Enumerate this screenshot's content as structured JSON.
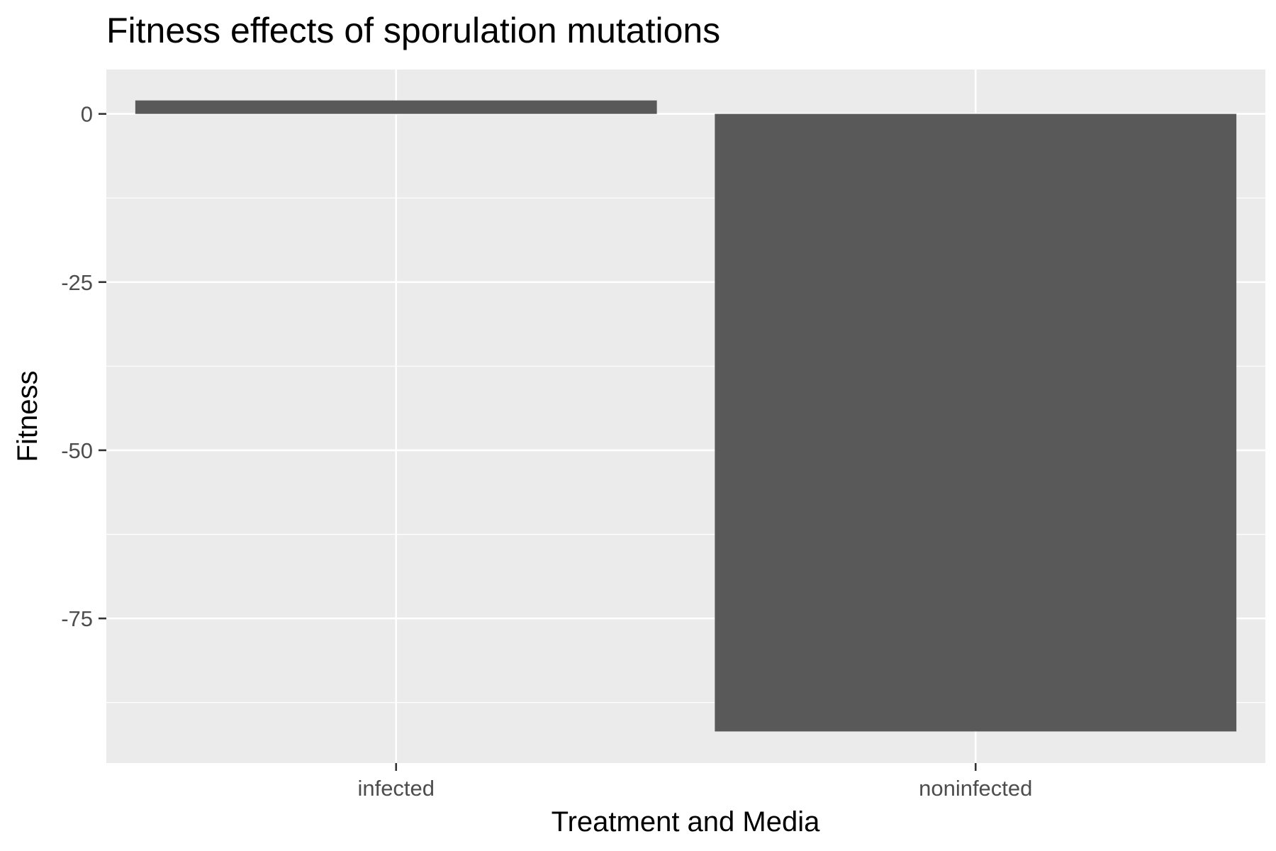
{
  "chart_data": {
    "type": "bar",
    "title": "Fitness effects of sporulation mutations",
    "xlabel": "Treatment and Media",
    "ylabel": "Fitness",
    "categories": [
      "infected",
      "noninfected"
    ],
    "values": [
      2,
      -91.8
    ],
    "ylim": [
      -96.5,
      6.6
    ],
    "yticks": [
      0,
      -25,
      -50,
      -75
    ],
    "ytick_labels": [
      "0",
      "-25",
      "-50",
      "-75"
    ],
    "grid": true,
    "legend": "none",
    "colors": {
      "panel_background": "#ebebeb",
      "grid": "#ffffff",
      "bar": "#595959",
      "tick": "#333333",
      "tick_label": "#4d4d4d"
    }
  }
}
